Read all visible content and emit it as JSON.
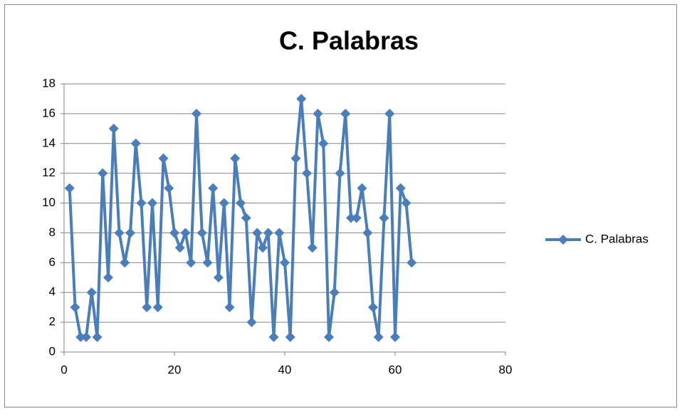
{
  "chart_data": {
    "type": "line",
    "title": "C. Palabras",
    "x": [
      1,
      2,
      3,
      4,
      5,
      6,
      7,
      8,
      9,
      10,
      11,
      12,
      13,
      14,
      15,
      16,
      17,
      18,
      19,
      20,
      21,
      22,
      23,
      24,
      25,
      26,
      27,
      28,
      29,
      30,
      31,
      32,
      33,
      34,
      35,
      36,
      37,
      38,
      39,
      40,
      41,
      42,
      43,
      44,
      45,
      46,
      47,
      48,
      49,
      50,
      51,
      52,
      53,
      54,
      55,
      56,
      57,
      58,
      59,
      60,
      61,
      62,
      63
    ],
    "series": [
      {
        "name": "C. Palabras",
        "color": "#4a7ebb",
        "values": [
          11,
          3,
          1,
          1,
          4,
          1,
          12,
          5,
          15,
          8,
          6,
          8,
          14,
          10,
          3,
          10,
          3,
          13,
          11,
          8,
          7,
          8,
          6,
          16,
          8,
          6,
          11,
          5,
          10,
          3,
          13,
          10,
          9,
          2,
          8,
          7,
          8,
          1,
          8,
          6,
          1,
          13,
          17,
          12,
          7,
          16,
          14,
          1,
          4,
          12,
          16,
          9,
          9,
          11,
          8,
          3,
          1,
          9,
          16,
          1,
          11,
          10,
          6
        ]
      }
    ],
    "xlim": [
      0,
      80
    ],
    "xticks": [
      0,
      20,
      40,
      60,
      80
    ],
    "ylim": [
      0,
      18
    ],
    "yticks": [
      0,
      2,
      4,
      6,
      8,
      10,
      12,
      14,
      16,
      18
    ],
    "grid": true,
    "legend": "right"
  }
}
